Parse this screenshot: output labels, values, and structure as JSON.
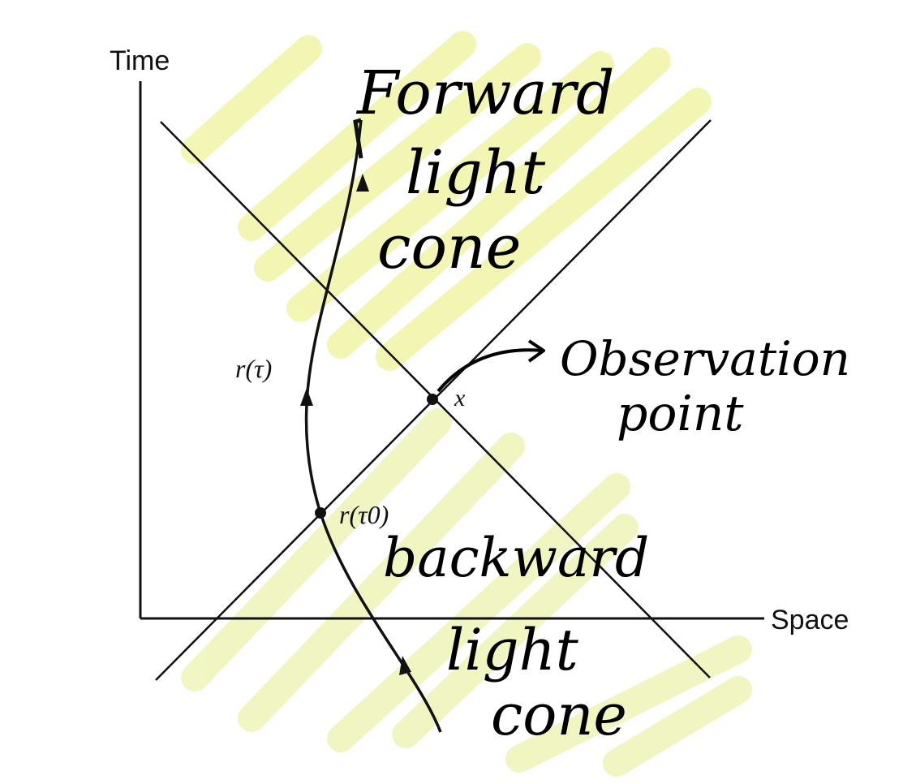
{
  "axes": {
    "vertical_label": "Time",
    "horizontal_label": "Space"
  },
  "points": {
    "observation": "x",
    "worldline": "r(τ)",
    "emission": "r(τ0)"
  },
  "annotations": {
    "forward": [
      "Forward",
      "light",
      "cone"
    ],
    "observation": [
      "Observation",
      "point"
    ],
    "backward": [
      "backward",
      "light",
      "cone"
    ]
  },
  "colors": {
    "ink": "#111111",
    "highlight": "#f2f5a6"
  }
}
